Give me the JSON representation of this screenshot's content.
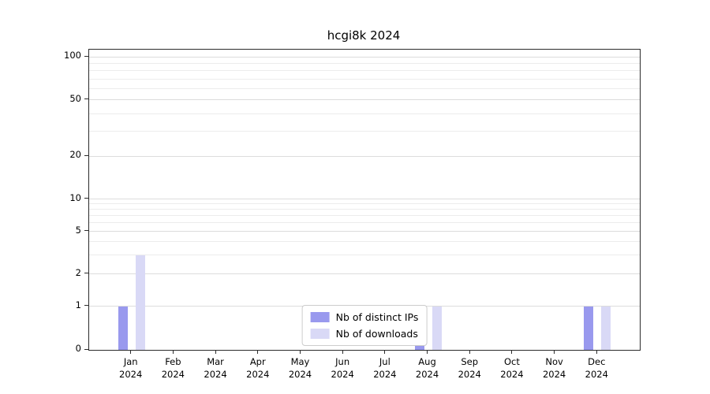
{
  "title": "hcgi8k 2024",
  "chart_data": {
    "type": "bar",
    "title": "hcgi8k 2024",
    "xlabel": "",
    "ylabel": "",
    "yscale": "log above 1, linear 0-1",
    "ylim": [
      0,
      100
    ],
    "yticks": [
      0,
      1,
      2,
      5,
      10,
      20,
      50,
      100
    ],
    "grid": "horizontal major + minor log gridlines",
    "legend_position": "lower center",
    "categories": [
      {
        "month": "Jan",
        "year": "2024"
      },
      {
        "month": "Feb",
        "year": "2024"
      },
      {
        "month": "Mar",
        "year": "2024"
      },
      {
        "month": "Apr",
        "year": "2024"
      },
      {
        "month": "May",
        "year": "2024"
      },
      {
        "month": "Jun",
        "year": "2024"
      },
      {
        "month": "Jul",
        "year": "2024"
      },
      {
        "month": "Aug",
        "year": "2024"
      },
      {
        "month": "Sep",
        "year": "2024"
      },
      {
        "month": "Oct",
        "year": "2024"
      },
      {
        "month": "Nov",
        "year": "2024"
      },
      {
        "month": "Dec",
        "year": "2024"
      }
    ],
    "series": [
      {
        "name": "Nb of distinct IPs",
        "color": "#9999ee",
        "values": [
          1,
          0,
          0,
          0,
          0,
          0,
          0,
          1,
          0,
          0,
          0,
          1
        ]
      },
      {
        "name": "Nb of downloads",
        "color": "#d9d9f6",
        "values": [
          3,
          0,
          0,
          0,
          0,
          0,
          0,
          1,
          0,
          0,
          0,
          1
        ]
      }
    ]
  }
}
